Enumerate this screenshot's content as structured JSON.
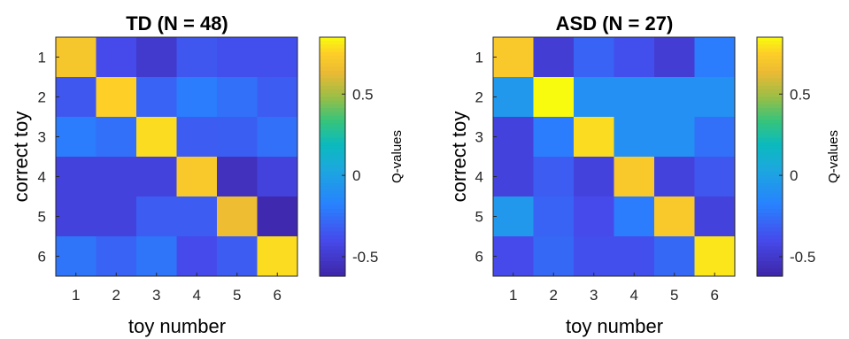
{
  "chart_data": [
    {
      "type": "heatmap",
      "title": "TD (N = 48)",
      "xlabel": "toy number",
      "ylabel": "correct toy",
      "x_ticks": [
        "1",
        "2",
        "3",
        "4",
        "5",
        "6"
      ],
      "y_ticks": [
        "1",
        "2",
        "3",
        "4",
        "5",
        "6"
      ],
      "colorbar": {
        "label": "Q-values",
        "ticks": [
          "0.5",
          "0",
          "-0.5"
        ],
        "tick_values": [
          0.5,
          0,
          -0.5
        ],
        "range": [
          -0.62,
          0.85
        ],
        "colormap": "parula"
      },
      "values": [
        [
          0.7,
          -0.4,
          -0.5,
          -0.35,
          -0.38,
          -0.38
        ],
        [
          -0.35,
          0.75,
          -0.3,
          -0.2,
          -0.25,
          -0.33
        ],
        [
          -0.2,
          -0.25,
          0.78,
          -0.33,
          -0.32,
          -0.25
        ],
        [
          -0.45,
          -0.45,
          -0.45,
          0.72,
          -0.55,
          -0.45
        ],
        [
          -0.45,
          -0.45,
          -0.33,
          -0.33,
          0.65,
          -0.6
        ],
        [
          -0.23,
          -0.3,
          -0.23,
          -0.4,
          -0.33,
          0.78
        ]
      ]
    },
    {
      "type": "heatmap",
      "title": "ASD (N = 27)",
      "xlabel": "toy number",
      "ylabel": "correct toy",
      "x_ticks": [
        "1",
        "2",
        "3",
        "4",
        "5",
        "6"
      ],
      "y_ticks": [
        "1",
        "2",
        "3",
        "4",
        "5",
        "6"
      ],
      "colorbar": {
        "label": "Q-values",
        "ticks": [
          "0.5",
          "0",
          "-0.5"
        ],
        "tick_values": [
          0.5,
          0,
          -0.5
        ],
        "range": [
          -0.62,
          0.85
        ],
        "colormap": "parula"
      },
      "values": [
        [
          0.72,
          -0.48,
          -0.3,
          -0.38,
          -0.48,
          -0.2
        ],
        [
          -0.05,
          0.85,
          -0.1,
          -0.1,
          -0.1,
          -0.1
        ],
        [
          -0.45,
          -0.2,
          0.78,
          -0.1,
          -0.1,
          -0.25
        ],
        [
          -0.45,
          -0.33,
          -0.45,
          0.72,
          -0.45,
          -0.35
        ],
        [
          -0.05,
          -0.3,
          -0.4,
          -0.2,
          0.72,
          -0.45
        ],
        [
          -0.4,
          -0.28,
          -0.38,
          -0.38,
          -0.28,
          0.8
        ]
      ]
    }
  ]
}
